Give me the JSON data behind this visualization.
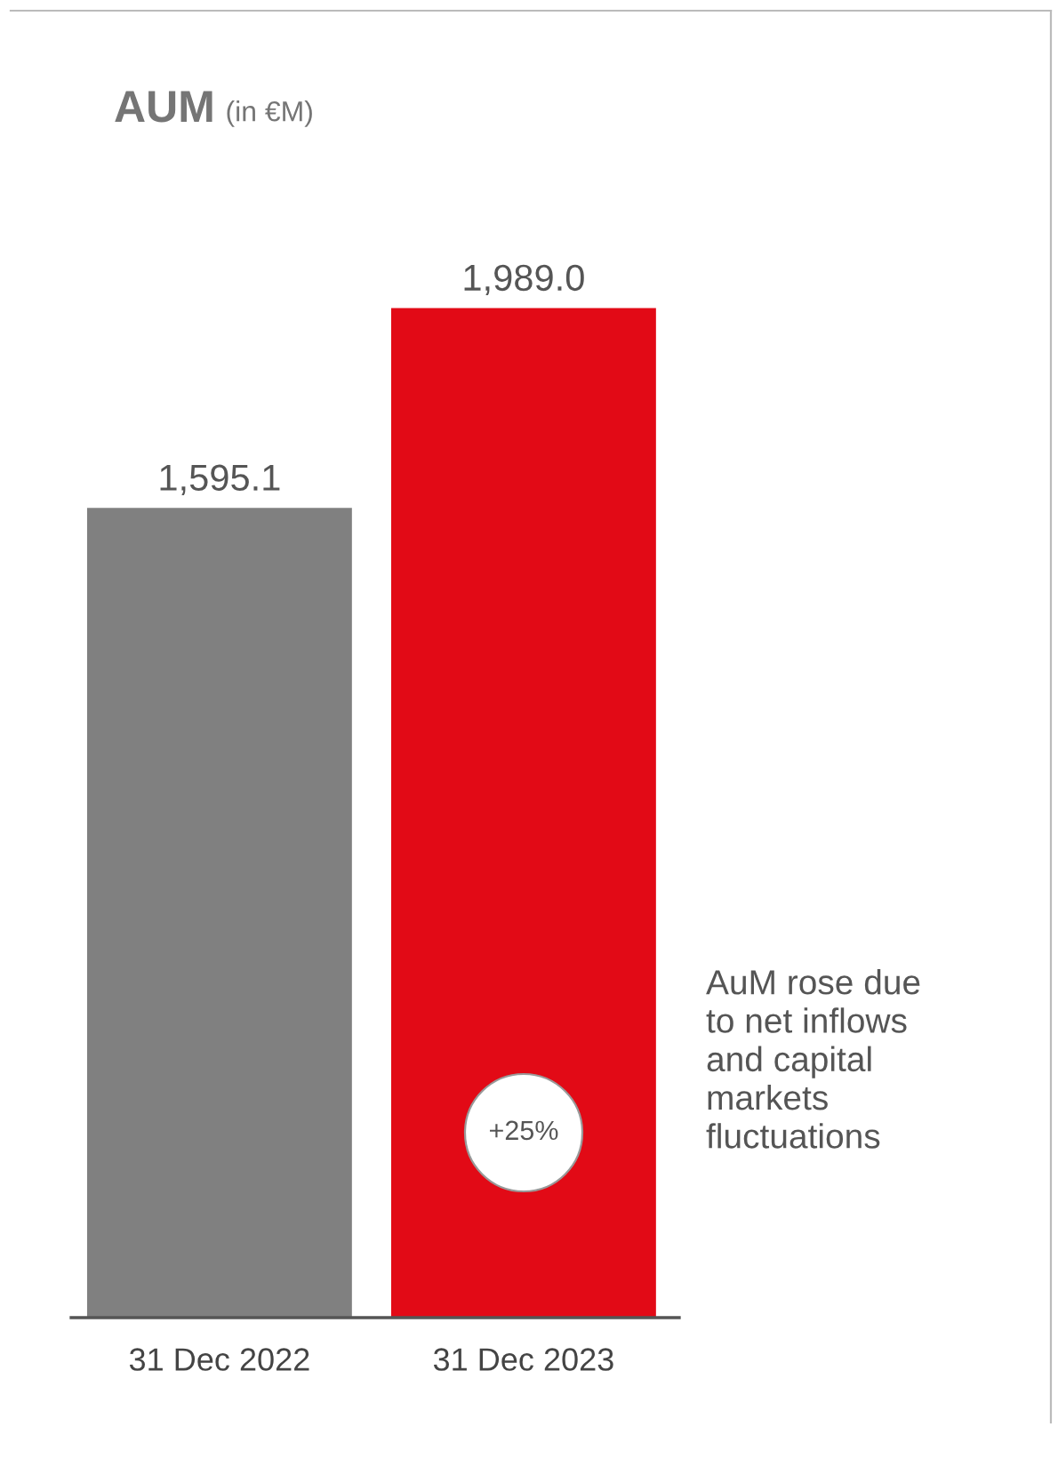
{
  "chart_data": {
    "type": "bar",
    "title": "AUM",
    "subtitle": "(in €M)",
    "categories": [
      "31 Dec 2022",
      "31 Dec 2023"
    ],
    "values": [
      1595.1,
      1989.0
    ],
    "colors": [
      "#808080",
      "#e20a16"
    ],
    "value_labels": [
      "1,595.1",
      "1,989.0"
    ],
    "annotations": [
      "+25%",
      "AuM rose due\nto net inflows\nand capital\nmarkets\nfluctuations"
    ],
    "grid": false,
    "legend": false
  }
}
